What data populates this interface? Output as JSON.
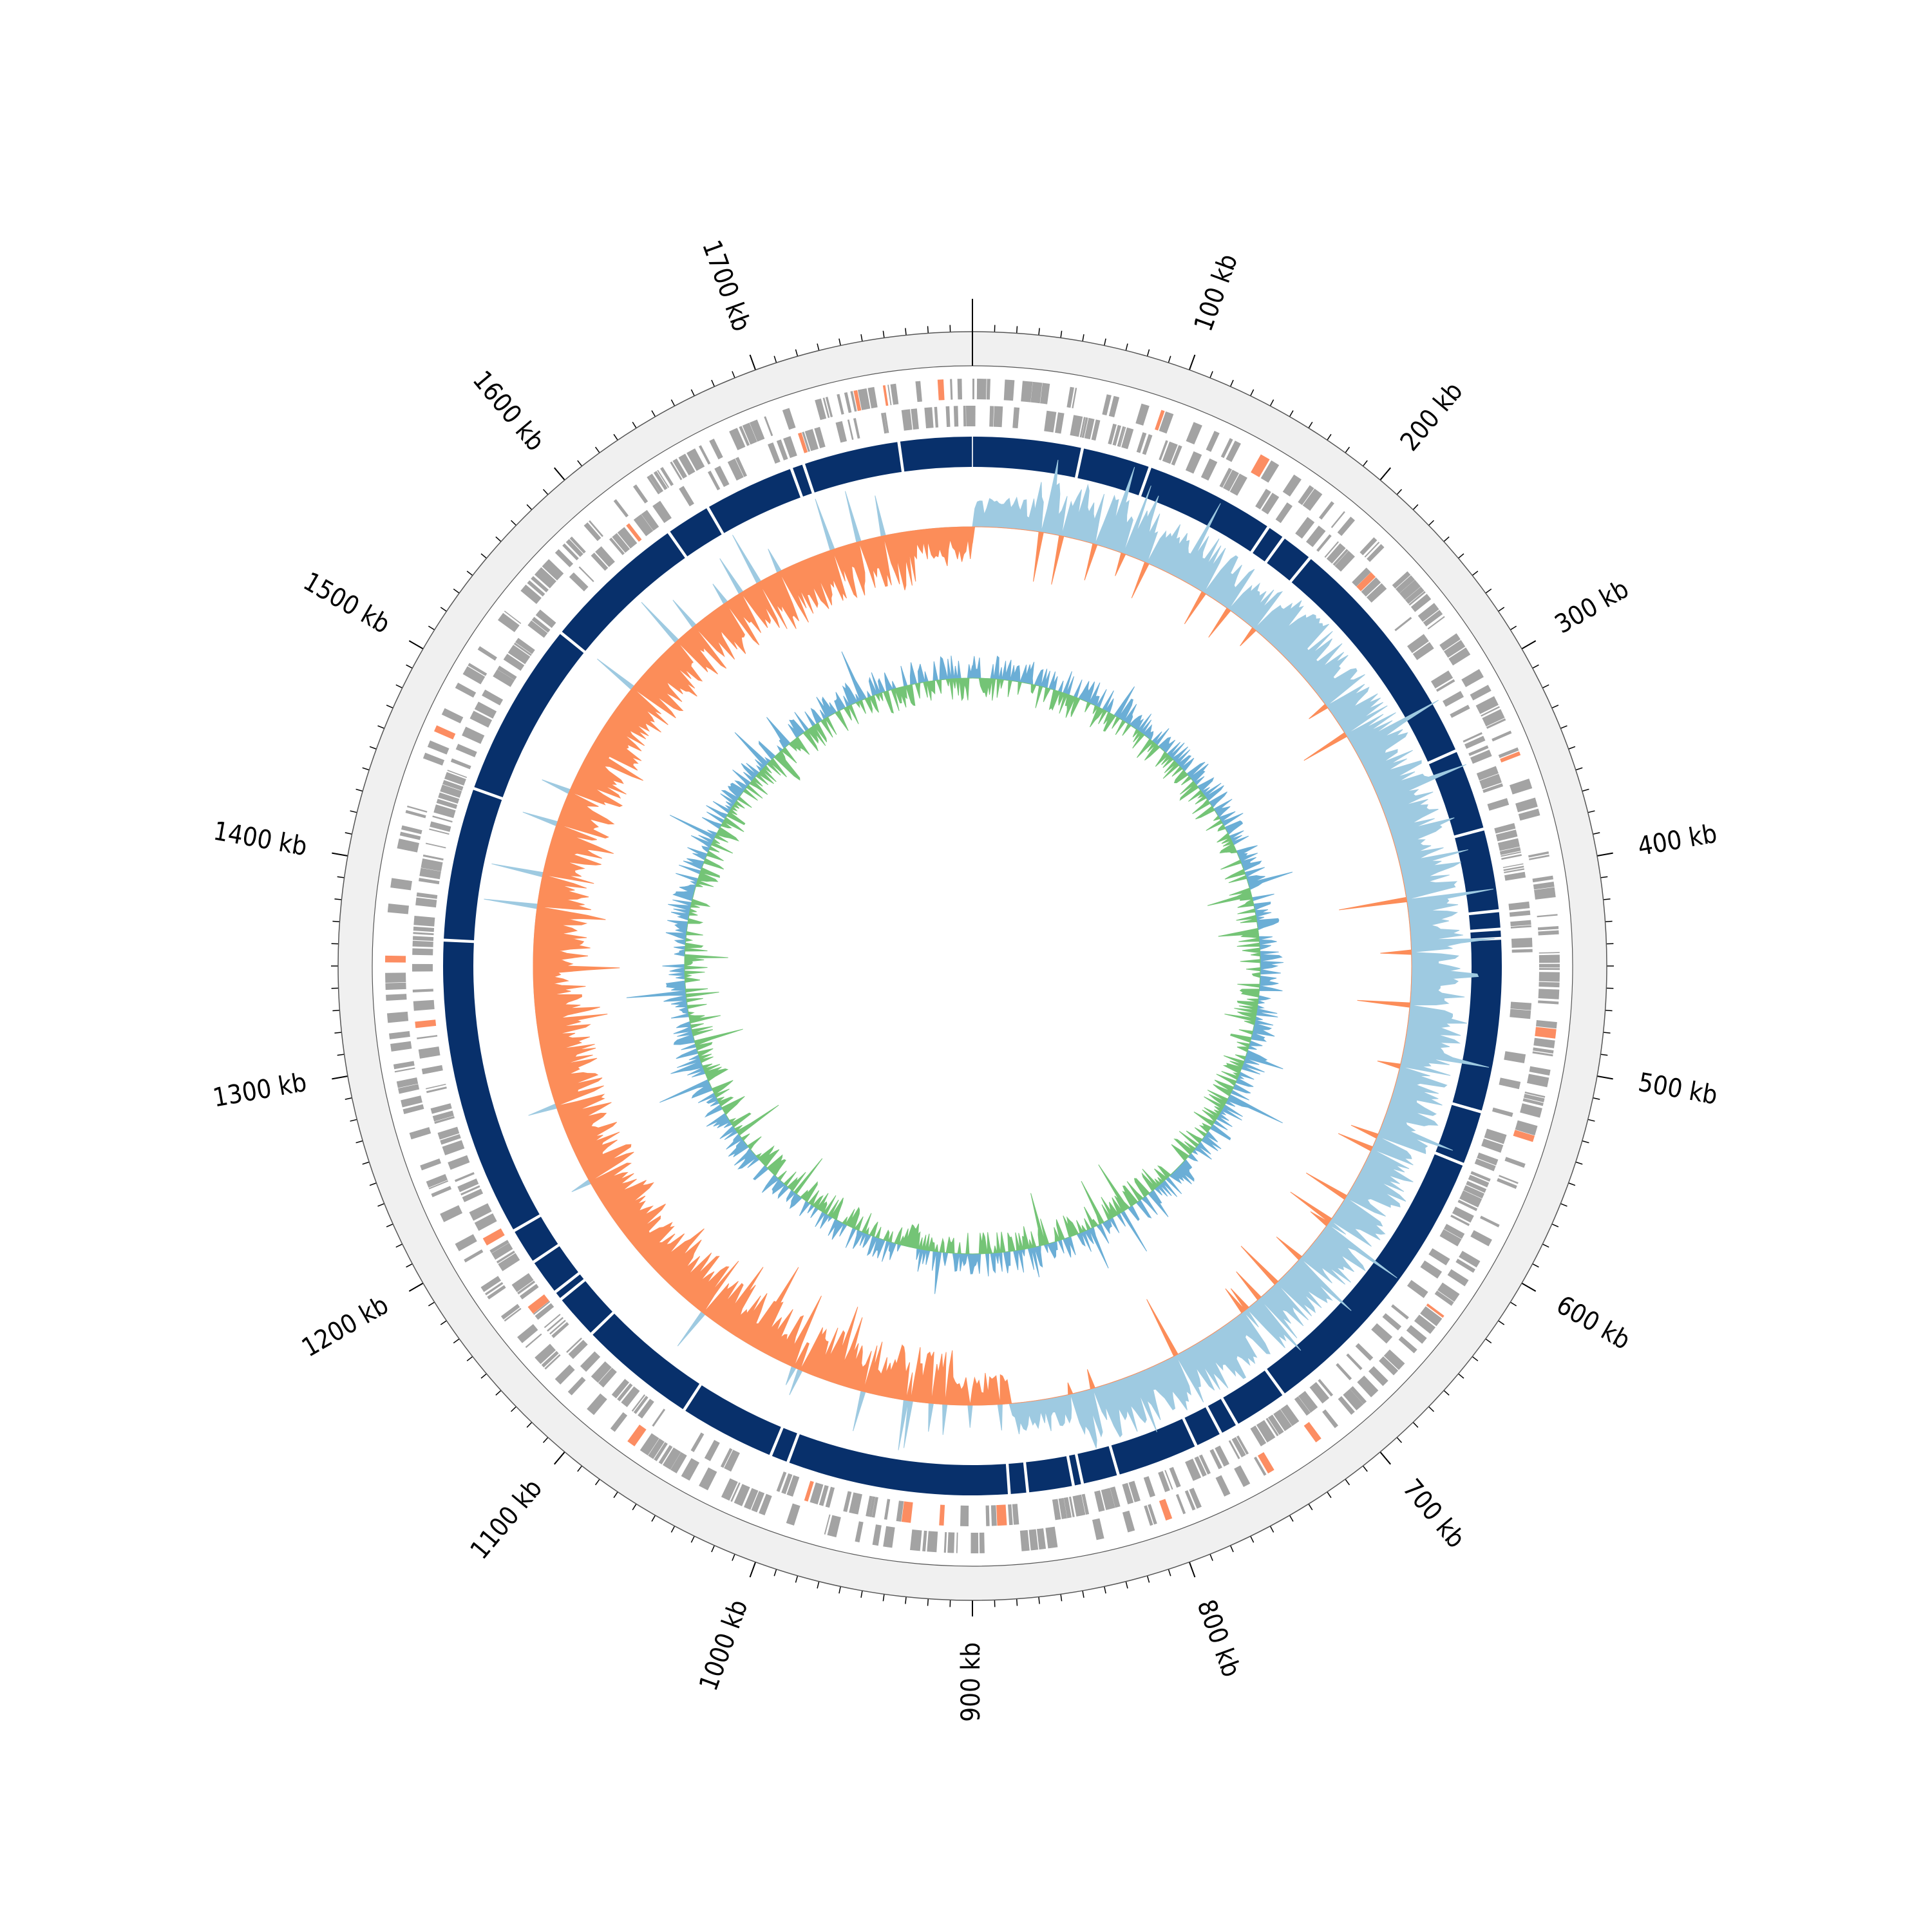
{
  "chart_data": {
    "type": "circular-genome-map",
    "genome_length_kb": 1800,
    "axis": {
      "major_tick_labels": [
        {
          "value": 100,
          "label": "100 kb"
        },
        {
          "value": 200,
          "label": "200 kb"
        },
        {
          "value": 300,
          "label": "300 kb"
        },
        {
          "value": 400,
          "label": "400 kb"
        },
        {
          "value": 500,
          "label": "500 kb"
        },
        {
          "value": 600,
          "label": "600 kb"
        },
        {
          "value": 700,
          "label": "700 kb"
        },
        {
          "value": 800,
          "label": "800 kb"
        },
        {
          "value": 900,
          "label": "900 kb"
        },
        {
          "value": 1000,
          "label": "1000 kb"
        },
        {
          "value": 1100,
          "label": "1100 kb"
        },
        {
          "value": 1200,
          "label": "1200 kb"
        },
        {
          "value": 1300,
          "label": "1300 kb"
        },
        {
          "value": 1400,
          "label": "1400 kb"
        },
        {
          "value": 1500,
          "label": "1500 kb"
        },
        {
          "value": 1600,
          "label": "1600 kb"
        },
        {
          "value": 1700,
          "label": "1700 kb"
        }
      ],
      "minor_tick_interval_kb": 10
    },
    "tracks": {
      "outer_band_color": "#f0f0f0",
      "features": {
        "gene_color": "#a3a3a3",
        "rna_color": "#fc8d62"
      },
      "contigs": {
        "color": "#08306b",
        "gap_positions_kb": [
          60,
          98,
          170,
          180,
          198,
          330,
          375,
          420,
          430,
          435,
          530,
          560,
          720,
          750,
          760,
          775,
          820,
          840,
          845,
          870,
          880,
          1002,
          1012,
          1065,
          1130,
          1155,
          1160,
          1180,
          1200,
          1364,
          1448,
          1545,
          1625,
          1650,
          1700,
          1707,
          1760
        ]
      },
      "gc_skew": {
        "positive_color": "#9ecae1",
        "negative_color": "#fc8d59",
        "origin_kb": 0,
        "terminus_kb": 875
      },
      "gc_content": {
        "above_color": "#6baed6",
        "below_color": "#74c476"
      }
    }
  }
}
